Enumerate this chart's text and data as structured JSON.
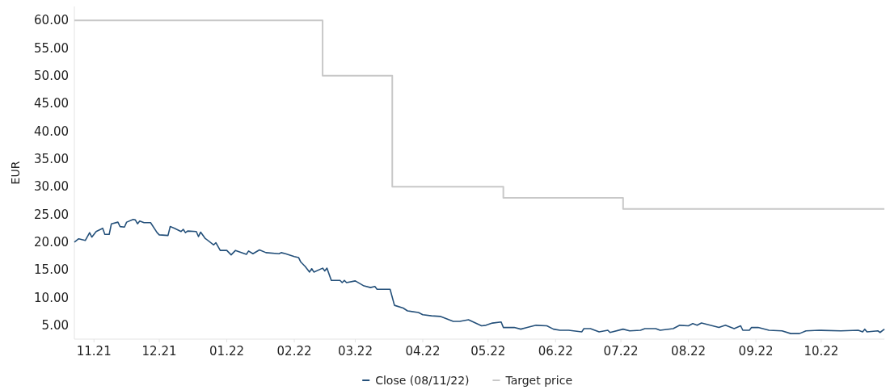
{
  "chart_data": {
    "type": "line",
    "ylabel": "EUR",
    "xlim": [
      "2021-10-23",
      "2022-10-30"
    ],
    "ylim": [
      2.5,
      62.5
    ],
    "yticks": [
      {
        "value": 5,
        "label": "5.00"
      },
      {
        "value": 10,
        "label": "10.00"
      },
      {
        "value": 15,
        "label": "15.00"
      },
      {
        "value": 20,
        "label": "20.00"
      },
      {
        "value": 25,
        "label": "25.00"
      },
      {
        "value": 30,
        "label": "30.00"
      },
      {
        "value": 35,
        "label": "35.00"
      },
      {
        "value": 40,
        "label": "40.00"
      },
      {
        "value": 45,
        "label": "45.00"
      },
      {
        "value": 50,
        "label": "50.00"
      },
      {
        "value": 55,
        "label": "55.00"
      },
      {
        "value": 60,
        "label": "60.00"
      }
    ],
    "xticks": [
      {
        "value": "2021-11-01",
        "label": "11.21"
      },
      {
        "value": "2021-12-01",
        "label": "12.21"
      },
      {
        "value": "2022-01-01",
        "label": "01.22"
      },
      {
        "value": "2022-02-01",
        "label": "02.22"
      },
      {
        "value": "2022-03-01",
        "label": "03.22"
      },
      {
        "value": "2022-04-01",
        "label": "04.22"
      },
      {
        "value": "2022-05-01",
        "label": "05.22"
      },
      {
        "value": "2022-06-01",
        "label": "06.22"
      },
      {
        "value": "2022-07-01",
        "label": "07.22"
      },
      {
        "value": "2022-08-01",
        "label": "08.22"
      },
      {
        "value": "2022-09-01",
        "label": "09.22"
      },
      {
        "value": "2022-10-01",
        "label": "10.22"
      }
    ],
    "grid": false,
    "legend": "bottom",
    "marker": "none",
    "line_style": "solid",
    "series": [
      {
        "name": "Close (08/11/22)",
        "color": "#24507a",
        "x": [
          "2021-10-23",
          "2021-10-25",
          "2021-10-28",
          "2021-10-30",
          "2021-10-31",
          "2021-11-02",
          "2021-11-05",
          "2021-11-06",
          "2021-11-08",
          "2021-11-09",
          "2021-11-12",
          "2021-11-13",
          "2021-11-15",
          "2021-11-16",
          "2021-11-19",
          "2021-11-20",
          "2021-11-21",
          "2021-11-22",
          "2021-11-24",
          "2021-11-27",
          "2021-11-30",
          "2021-12-01",
          "2021-12-05",
          "2021-12-06",
          "2021-12-08",
          "2021-12-11",
          "2021-12-12",
          "2021-12-13",
          "2021-12-14",
          "2021-12-18",
          "2021-12-19",
          "2021-12-20",
          "2021-12-22",
          "2021-12-26",
          "2021-12-27",
          "2021-12-29",
          "2022-01-01",
          "2022-01-03",
          "2022-01-05",
          "2022-01-10",
          "2022-01-11",
          "2022-01-13",
          "2022-01-16",
          "2022-01-19",
          "2022-01-25",
          "2022-01-26",
          "2022-01-28",
          "2022-02-01",
          "2022-02-03",
          "2022-02-04",
          "2022-02-06",
          "2022-02-08",
          "2022-02-09",
          "2022-02-10",
          "2022-02-14",
          "2022-02-15",
          "2022-02-16",
          "2022-02-18",
          "2022-02-22",
          "2022-02-23",
          "2022-02-24",
          "2022-02-25",
          "2022-03-01",
          "2022-03-05",
          "2022-03-08",
          "2022-03-10",
          "2022-03-11",
          "2022-03-17",
          "2022-03-19",
          "2022-03-23",
          "2022-03-25",
          "2022-03-30",
          "2022-04-01",
          "2022-04-05",
          "2022-04-09",
          "2022-04-15",
          "2022-04-18",
          "2022-04-22",
          "2022-04-28",
          "2022-04-30",
          "2022-05-03",
          "2022-05-07",
          "2022-05-08",
          "2022-05-13",
          "2022-05-16",
          "2022-05-19",
          "2022-05-23",
          "2022-05-28",
          "2022-05-31",
          "2022-06-03",
          "2022-06-07",
          "2022-06-13",
          "2022-06-14",
          "2022-06-17",
          "2022-06-21",
          "2022-06-25",
          "2022-06-26",
          "2022-07-02",
          "2022-07-05",
          "2022-07-10",
          "2022-07-12",
          "2022-07-17",
          "2022-07-19",
          "2022-07-25",
          "2022-07-28",
          "2022-08-01",
          "2022-08-03",
          "2022-08-05",
          "2022-08-07",
          "2022-08-15",
          "2022-08-18",
          "2022-08-22",
          "2022-08-25",
          "2022-08-26",
          "2022-08-29",
          "2022-08-30",
          "2022-09-02",
          "2022-09-07",
          "2022-09-13",
          "2022-09-17",
          "2022-09-21",
          "2022-09-24",
          "2022-09-30",
          "2022-10-10",
          "2022-10-18",
          "2022-10-20",
          "2022-10-21",
          "2022-10-22",
          "2022-10-27",
          "2022-10-28",
          "2022-10-30"
        ],
        "values": [
          20.0,
          20.6,
          20.3,
          21.7,
          20.9,
          21.9,
          22.5,
          21.4,
          21.4,
          23.3,
          23.6,
          22.8,
          22.7,
          23.6,
          24.1,
          24.0,
          23.3,
          23.8,
          23.5,
          23.5,
          21.7,
          21.3,
          21.2,
          22.8,
          22.5,
          21.9,
          22.3,
          21.7,
          22.0,
          21.9,
          21.0,
          21.8,
          20.7,
          19.5,
          19.9,
          18.5,
          18.5,
          17.7,
          18.5,
          17.8,
          18.4,
          17.9,
          18.6,
          18.1,
          17.9,
          18.1,
          17.9,
          17.4,
          17.2,
          16.4,
          15.6,
          14.6,
          15.2,
          14.6,
          15.3,
          14.8,
          15.3,
          13.1,
          13.1,
          12.7,
          13.1,
          12.7,
          13.0,
          12.1,
          11.8,
          12.0,
          11.5,
          11.5,
          8.6,
          8.1,
          7.6,
          7.3,
          6.9,
          6.7,
          6.6,
          5.7,
          5.7,
          6.0,
          4.9,
          5.0,
          5.4,
          5.6,
          4.6,
          4.6,
          4.3,
          4.6,
          5.0,
          4.9,
          4.3,
          4.1,
          4.1,
          3.8,
          4.4,
          4.4,
          3.8,
          4.1,
          3.7,
          4.3,
          4.0,
          4.1,
          4.4,
          4.4,
          4.1,
          4.4,
          5.0,
          4.9,
          5.3,
          5.0,
          5.4,
          4.6,
          5.0,
          4.4,
          4.9,
          4.1,
          4.1,
          4.6,
          4.6,
          4.1,
          4.0,
          3.5,
          3.5,
          4.0,
          4.1,
          4.0,
          4.1,
          3.8,
          4.3,
          3.8,
          4.0,
          3.7,
          4.3
        ]
      },
      {
        "name": "Target price",
        "type": "step",
        "color": "#c8c8c8",
        "x": [
          "2021-10-23",
          "2022-02-14",
          "2022-03-18",
          "2022-05-08",
          "2022-07-02",
          "2022-10-30"
        ],
        "values": [
          60,
          50,
          30,
          28,
          26,
          26
        ]
      }
    ]
  }
}
